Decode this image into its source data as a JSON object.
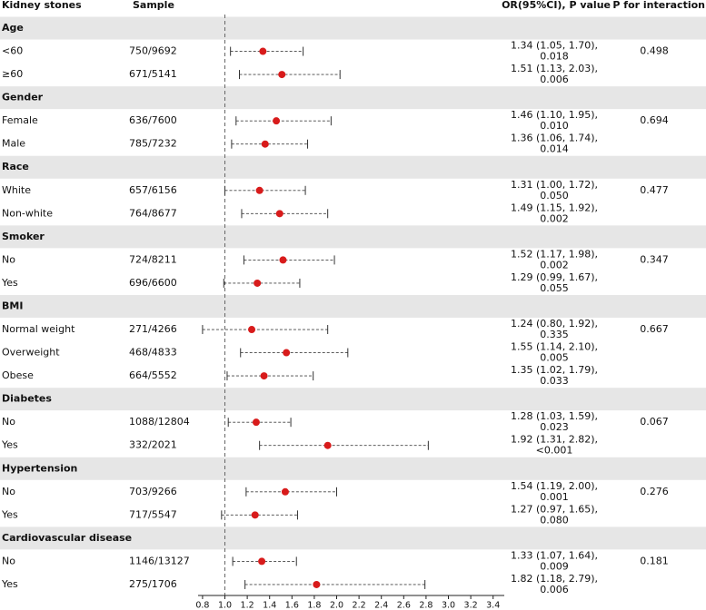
{
  "chart_data": {
    "type": "forest",
    "columns": [
      "Kidney stones",
      "Sample",
      "OR(95%CI), P value",
      "P for interaction"
    ],
    "xlim": [
      0.76,
      3.5
    ],
    "xticks": [
      0.8,
      {
        "value": 1,
        "label": "1.0"
      },
      1.2,
      1.4,
      1.6,
      1.8,
      {
        "value": 2,
        "label": "2.0"
      },
      2.2,
      2.4,
      2.6,
      2.8,
      {
        "value": 3,
        "label": "3.0"
      },
      3.2,
      3.4
    ],
    "ref_line": 1,
    "point_color": "#d81b1b",
    "groups": [
      {
        "name": "Age",
        "p_interaction": 0.498,
        "rows": [
          {
            "label": "<60",
            "sample": "750/9692",
            "or": 1.34,
            "ci": [
              1.05,
              1.7
            ],
            "or_label": "1.34 (1.05, 1.70),",
            "p": "0.018"
          },
          {
            "label": "≥60",
            "sample": "671/5141",
            "or": 1.51,
            "ci": [
              1.13,
              2.03
            ],
            "or_label": "1.51 (1.13, 2.03),",
            "p": "0.006"
          }
        ]
      },
      {
        "name": "Gender",
        "p_interaction": 0.694,
        "rows": [
          {
            "label": "Female",
            "sample": "636/7600",
            "or": 1.46,
            "ci": [
              1.1,
              1.95
            ],
            "or_label": "1.46 (1.10, 1.95),",
            "p": "0.010"
          },
          {
            "label": "Male",
            "sample": "785/7232",
            "or": 1.36,
            "ci": [
              1.06,
              1.74
            ],
            "or_label": "1.36 (1.06, 1.74),",
            "p": "0.014"
          }
        ]
      },
      {
        "name": "Race",
        "p_interaction": 0.477,
        "rows": [
          {
            "label": "White",
            "sample": "657/6156",
            "or": 1.31,
            "ci": [
              1.0,
              1.72
            ],
            "or_label": "1.31 (1.00, 1.72),",
            "p": "0.050"
          },
          {
            "label": "Non-white",
            "sample": "764/8677",
            "or": 1.49,
            "ci": [
              1.15,
              1.92
            ],
            "or_label": "1.49 (1.15, 1.92),",
            "p": "0.002"
          }
        ]
      },
      {
        "name": "Smoker",
        "p_interaction": 0.347,
        "rows": [
          {
            "label": "No",
            "sample": "724/8211",
            "or": 1.52,
            "ci": [
              1.17,
              1.98
            ],
            "or_label": "1.52 (1.17, 1.98),",
            "p": "0.002"
          },
          {
            "label": "Yes",
            "sample": "696/6600",
            "or": 1.29,
            "ci": [
              0.99,
              1.67
            ],
            "or_label": "1.29 (0.99, 1.67),",
            "p": "0.055"
          }
        ]
      },
      {
        "name": "BMI",
        "p_interaction": 0.667,
        "rows": [
          {
            "label": "Normal weight",
            "sample": "271/4266",
            "or": 1.24,
            "ci": [
              0.8,
              1.92
            ],
            "or_label": "1.24 (0.80, 1.92),",
            "p": "0.335"
          },
          {
            "label": "Overweight",
            "sample": "468/4833",
            "or": 1.55,
            "ci": [
              1.14,
              2.1
            ],
            "or_label": "1.55 (1.14, 2.10),",
            "p": "0.005"
          },
          {
            "label": "Obese",
            "sample": "664/5552",
            "or": 1.35,
            "ci": [
              1.02,
              1.79
            ],
            "or_label": "1.35 (1.02, 1.79),",
            "p": "0.033"
          }
        ]
      },
      {
        "name": "Diabetes",
        "p_interaction": 0.067,
        "rows": [
          {
            "label": "No",
            "sample": "1088/12804",
            "or": 1.28,
            "ci": [
              1.03,
              1.59
            ],
            "or_label": "1.28 (1.03, 1.59),",
            "p": "0.023"
          },
          {
            "label": "Yes",
            "sample": "332/2021",
            "or": 1.92,
            "ci": [
              1.31,
              2.82
            ],
            "or_label": "1.92 (1.31, 2.82),",
            "p": "<0.001"
          }
        ]
      },
      {
        "name": "Hypertension",
        "p_interaction": 0.276,
        "rows": [
          {
            "label": "No",
            "sample": "703/9266",
            "or": 1.54,
            "ci": [
              1.19,
              2.0
            ],
            "or_label": "1.54 (1.19, 2.00),",
            "p": "0.001"
          },
          {
            "label": "Yes",
            "sample": "717/5547",
            "or": 1.27,
            "ci": [
              0.97,
              1.65
            ],
            "or_label": "1.27 (0.97, 1.65),",
            "p": "0.080"
          }
        ]
      },
      {
        "name": "Cardiovascular disease",
        "p_interaction": 0.181,
        "rows": [
          {
            "label": "No",
            "sample": "1146/13127",
            "or": 1.33,
            "ci": [
              1.07,
              1.64
            ],
            "or_label": "1.33 (1.07, 1.64),",
            "p": "0.009"
          },
          {
            "label": "Yes",
            "sample": "275/1706",
            "or": 1.82,
            "ci": [
              1.18,
              2.79
            ],
            "or_label": "1.82 (1.18, 2.79),",
            "p": "0.006"
          }
        ]
      }
    ]
  }
}
